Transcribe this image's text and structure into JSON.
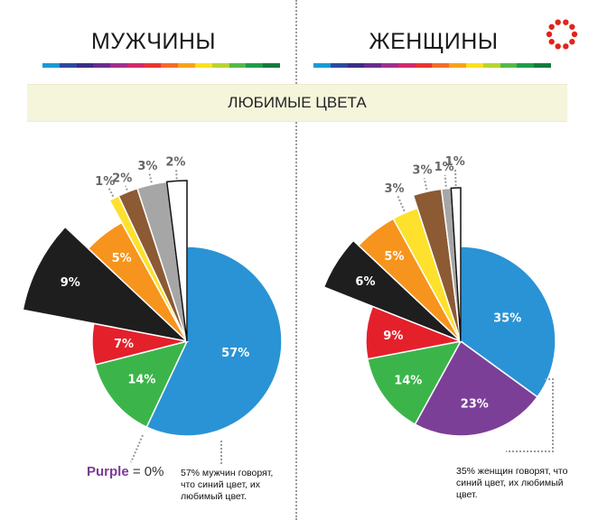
{
  "headers": {
    "men": "МУЖЧИНЫ",
    "women": "ЖЕНЩИНЫ"
  },
  "banner": "ЛЮБИМЫЕ ЦВЕТА",
  "stripe_colors": [
    "#1a9ad6",
    "#2d4aa0",
    "#3b2e85",
    "#6b2b8e",
    "#a0308c",
    "#d22a6b",
    "#e8352f",
    "#f46b28",
    "#f8a21c",
    "#fbe11c",
    "#b8d432",
    "#55b947",
    "#1e9d4a",
    "#16793c"
  ],
  "logo": {
    "icon": "red-dot-circle-icon",
    "color": "#e2231a"
  },
  "purple_note": {
    "label": "Purple",
    "suffix": " = 0%"
  },
  "notes": {
    "men": "57% мужчин говорят, что  синий цвет, их любимый цвет.",
    "women": "35% женщин говорят, что синий цвет, их любимый цвет."
  },
  "chart_data": [
    {
      "type": "pie",
      "title": "МУЖЧИНЫ",
      "categories": [
        "blue",
        "green",
        "red",
        "black",
        "orange",
        "yellow",
        "brown",
        "gray",
        "white"
      ],
      "values": [
        57,
        14,
        7,
        9,
        5,
        1,
        2,
        3,
        2
      ],
      "labels": [
        "57%",
        "14%",
        "7%",
        "9%",
        "5%",
        "1%",
        "2%",
        "3%",
        "2%"
      ],
      "colors": [
        "#2a93d5",
        "#3bb54a",
        "#e4202b",
        "#1e1e1e",
        "#f7941d",
        "#fde12d",
        "#8c5a33",
        "#a6a6a6",
        "#ffffff"
      ]
    },
    {
      "type": "pie",
      "title": "ЖЕНЩИНЫ",
      "categories": [
        "blue",
        "purple",
        "green",
        "red",
        "black",
        "orange",
        "yellow",
        "brown",
        "gray",
        "white"
      ],
      "values": [
        35,
        23,
        14,
        9,
        6,
        5,
        3,
        3,
        1,
        1
      ],
      "labels": [
        "35%",
        "23%",
        "14%",
        "9%",
        "6%",
        "5%",
        "3%",
        "3%",
        "1%",
        "1%"
      ],
      "colors": [
        "#2a93d5",
        "#7c3f98",
        "#3bb54a",
        "#e4202b",
        "#1e1e1e",
        "#f7941d",
        "#fde12d",
        "#8c5a33",
        "#a6a6a6",
        "#ffffff"
      ]
    }
  ]
}
